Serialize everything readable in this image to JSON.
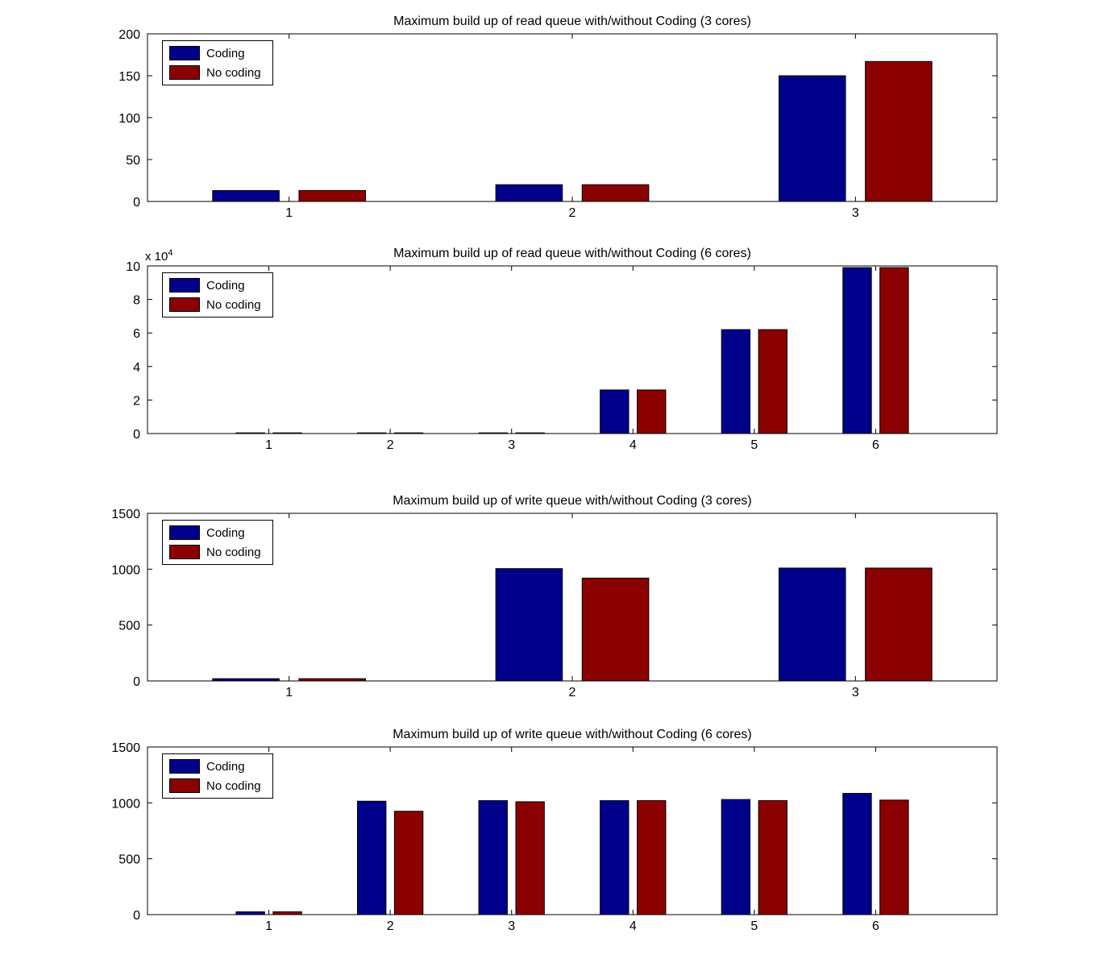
{
  "figure": {
    "background_color": "#ffffff",
    "series_colors": {
      "coding": "#00008B",
      "no_coding": "#8B0000"
    }
  },
  "chart_data": [
    {
      "type": "bar",
      "title": "Maximum build up of read queue with/without Coding (3 cores)",
      "categories": [
        "1",
        "2",
        "3"
      ],
      "series": [
        {
          "name": "Coding",
          "color": "#00008B",
          "values": [
            13,
            20,
            150
          ]
        },
        {
          "name": "No coding",
          "color": "#8B0000",
          "values": [
            13,
            20,
            167
          ]
        }
      ],
      "xlim": [
        0.5,
        3.5
      ],
      "ylim": [
        0,
        200
      ],
      "yticks": [
        0,
        50,
        100,
        150,
        200
      ],
      "grid": false,
      "legend_position": "top-left"
    },
    {
      "type": "bar",
      "title": "Maximum build up of read queue with/without Coding (6 cores)",
      "categories": [
        "1",
        "2",
        "3",
        "4",
        "5",
        "6"
      ],
      "series": [
        {
          "name": "Coding",
          "color": "#00008B",
          "values": [
            400,
            400,
            400,
            26000,
            62000,
            99000
          ]
        },
        {
          "name": "No coding",
          "color": "#8B0000",
          "values": [
            400,
            400,
            400,
            26000,
            62000,
            99000
          ]
        }
      ],
      "xlim": [
        0,
        7
      ],
      "ylim": [
        0,
        100000
      ],
      "yticks": [
        0,
        20000,
        40000,
        60000,
        80000,
        100000
      ],
      "ytick_labels": [
        "0",
        "2",
        "4",
        "6",
        "8",
        "10"
      ],
      "y_multiplier": {
        "base": "x 10",
        "exp": "4"
      },
      "grid": false,
      "legend_position": "top-left"
    },
    {
      "type": "bar",
      "title": "Maximum build up of write queue with/without Coding (3 cores)",
      "categories": [
        "1",
        "2",
        "3"
      ],
      "series": [
        {
          "name": "Coding",
          "color": "#00008B",
          "values": [
            20,
            1005,
            1010
          ]
        },
        {
          "name": "No coding",
          "color": "#8B0000",
          "values": [
            20,
            920,
            1010
          ]
        }
      ],
      "xlim": [
        0.5,
        3.5
      ],
      "ylim": [
        0,
        1500
      ],
      "yticks": [
        0,
        500,
        1000,
        1500
      ],
      "grid": false,
      "legend_position": "top-left"
    },
    {
      "type": "bar",
      "title": "Maximum build up of write queue with/without Coding (6 cores)",
      "categories": [
        "1",
        "2",
        "3",
        "4",
        "5",
        "6"
      ],
      "series": [
        {
          "name": "Coding",
          "color": "#00008B",
          "values": [
            25,
            1015,
            1020,
            1020,
            1030,
            1085
          ]
        },
        {
          "name": "No coding",
          "color": "#8B0000",
          "values": [
            25,
            925,
            1010,
            1020,
            1020,
            1025
          ]
        }
      ],
      "xlim": [
        0,
        7
      ],
      "ylim": [
        0,
        1500
      ],
      "yticks": [
        0,
        500,
        1000,
        1500
      ],
      "grid": false,
      "legend_position": "top-left"
    }
  ]
}
